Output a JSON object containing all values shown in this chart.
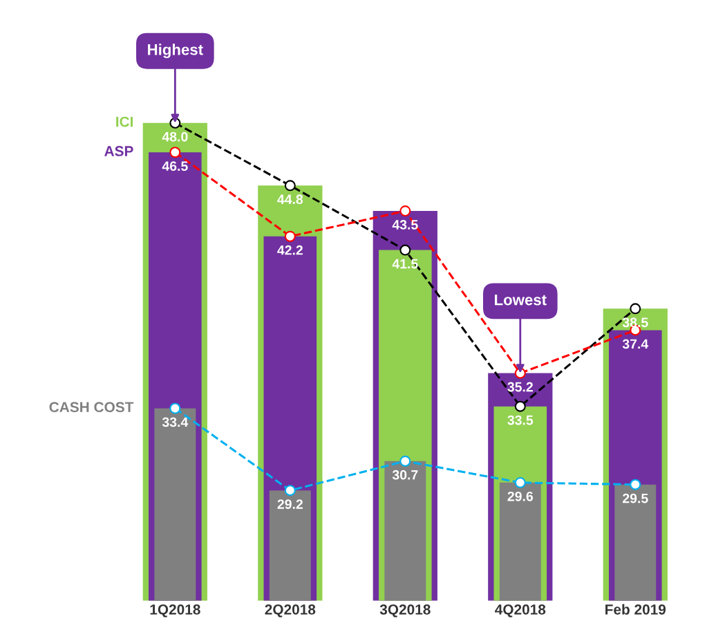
{
  "chart_data": {
    "type": "bar",
    "categories": [
      "1Q2018",
      "2Q2018",
      "3Q2018",
      "4Q2018",
      "Feb 2019"
    ],
    "series": [
      {
        "name": "ICI",
        "color": "#92d050",
        "values": [
          48.0,
          44.8,
          41.5,
          33.5,
          38.5
        ],
        "value_labels": [
          "48.0",
          "44.8",
          "41.5",
          "33.5",
          "38.5"
        ]
      },
      {
        "name": "ASP",
        "color": "#7030a0",
        "values": [
          46.5,
          42.2,
          43.5,
          35.2,
          37.4
        ],
        "value_labels": [
          "46.5",
          "42.2",
          "43.5",
          "35.2",
          "37.4"
        ]
      },
      {
        "name": "CASH COST",
        "color": "#808080",
        "values": [
          33.4,
          29.2,
          30.7,
          29.6,
          29.5
        ],
        "value_labels": [
          "33.4",
          "29.2",
          "30.7",
          "29.6",
          "29.5"
        ]
      },
      {
        "type": "line",
        "color": "#000000",
        "values": [
          48.0,
          44.8,
          41.5,
          33.5,
          38.5
        ]
      },
      {
        "type": "line",
        "color": "#ff0000",
        "values": [
          46.5,
          42.2,
          43.5,
          35.2,
          37.4
        ]
      },
      {
        "type": "line",
        "color": "#00b0f0",
        "values": [
          33.4,
          29.2,
          30.7,
          29.6,
          29.5
        ]
      }
    ],
    "tick_labels": "x",
    "marker": "circle",
    "line_style": "dashed",
    "grid": false,
    "annotations": [
      {
        "text": "Highest",
        "x": "1Q2018",
        "y": 48.0
      },
      {
        "text": "Lowest",
        "x": "4Q2018",
        "y": 35.2
      }
    ]
  }
}
